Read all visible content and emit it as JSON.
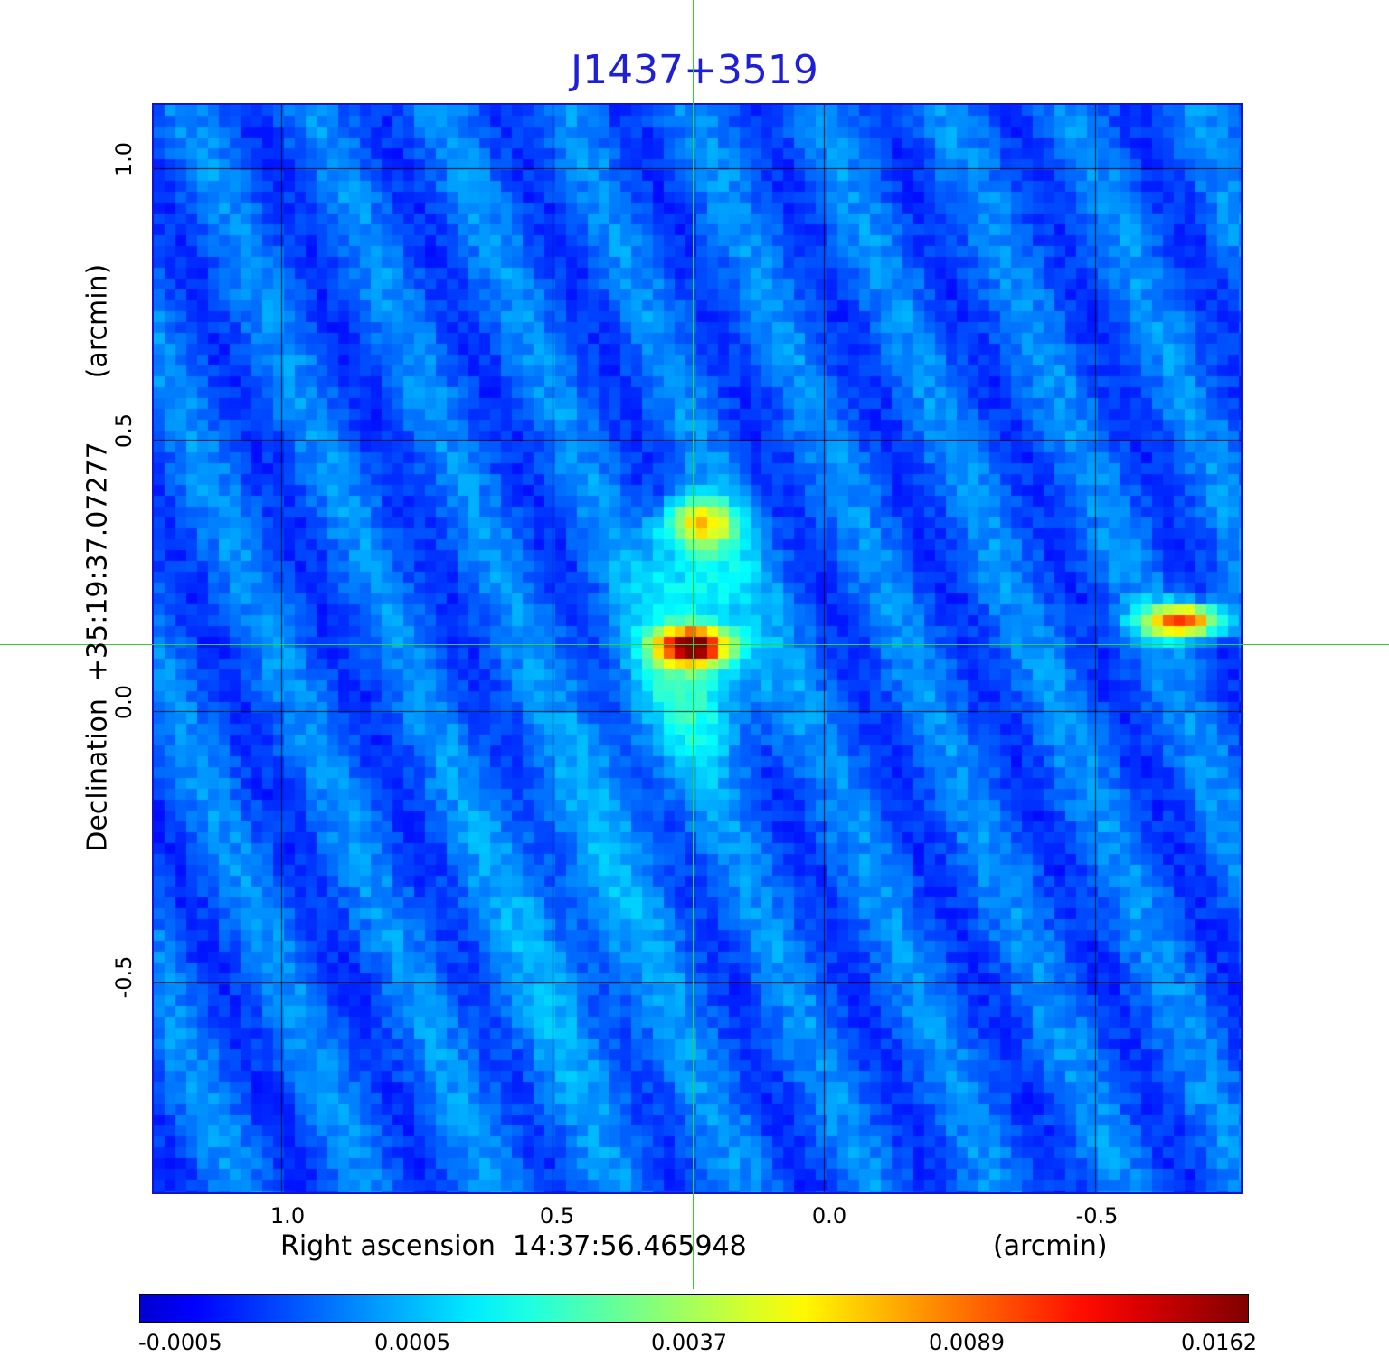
{
  "title": "J1437+3519",
  "axes": {
    "x_label": "Right ascension  14:37:56.465948",
    "x_unit": "(arcmin)",
    "y_label": "Declination  +35:19:37.07277",
    "y_unit": "(arcmin)",
    "x_ticks": [
      "1.0",
      "0.5",
      "0.0",
      "-0.5"
    ],
    "y_ticks": [
      "1.0",
      "0.5",
      "0.0",
      "-0.5"
    ]
  },
  "colorbar": {
    "tick_labels": [
      "-0.0005",
      "0.0005",
      "0.0037",
      "0.0089",
      "0.0162"
    ],
    "colormap": "jet"
  },
  "crosshair_color": "#2fd12f",
  "frame_color": "#1515c8",
  "title_color": "#1f1fd6"
}
